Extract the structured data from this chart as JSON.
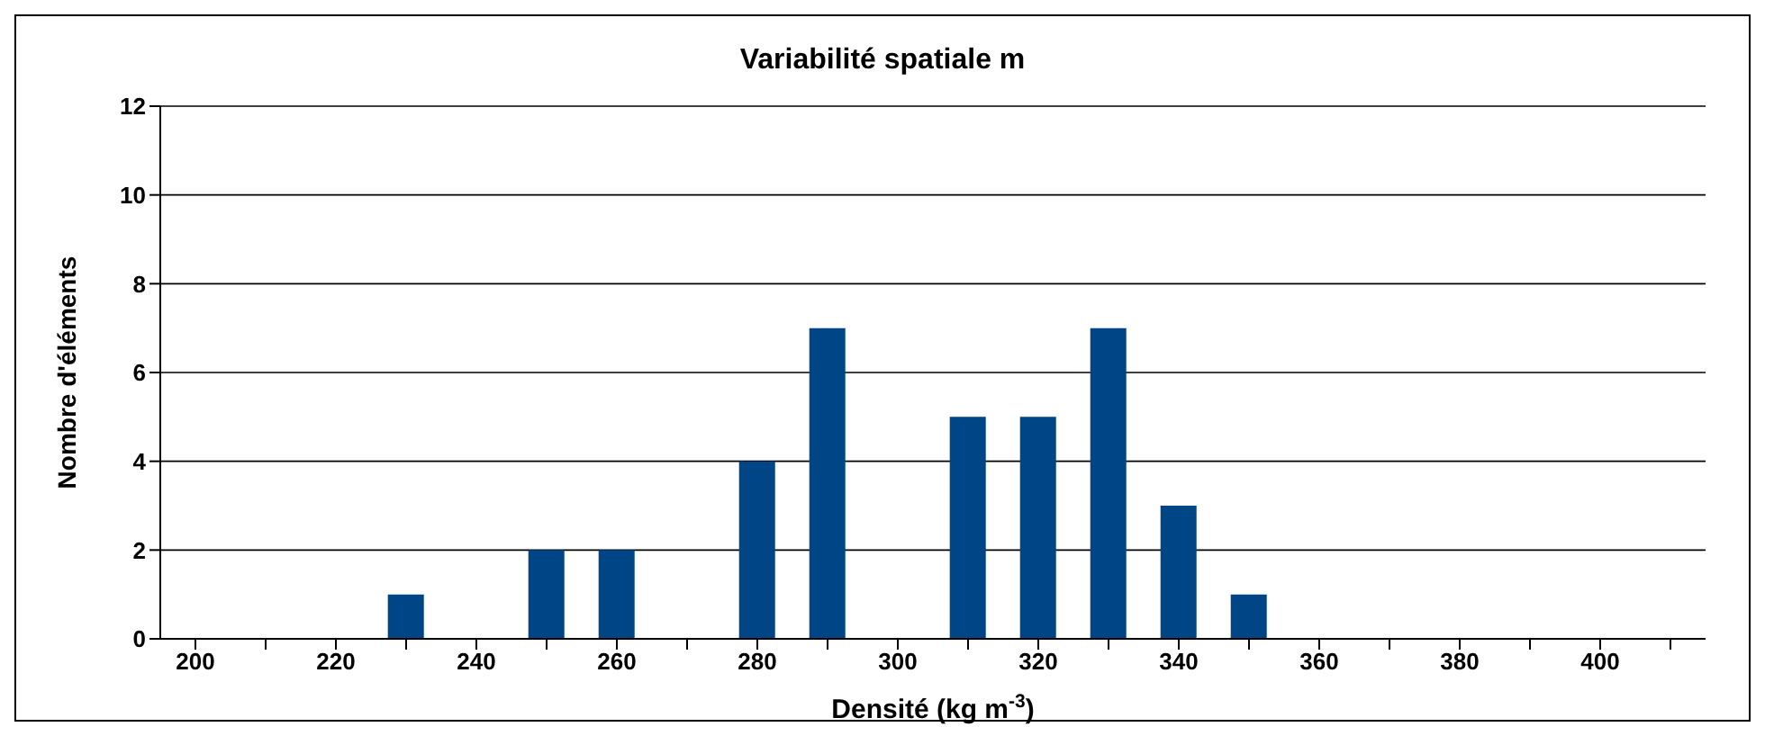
{
  "chart_data": {
    "type": "bar",
    "title": "Variabilité spatiale m",
    "xlabel": "Densité (kg m$^{-3}$)",
    "ylabel": "Nombre d'éléments",
    "categories": [
      "200",
      null,
      "220",
      null,
      "240",
      null,
      "260",
      null,
      "280",
      null,
      "300",
      null,
      "320",
      null,
      "340",
      null,
      "360",
      null,
      "380",
      null,
      "400",
      null
    ],
    "values": [
      0,
      0,
      0,
      1,
      0,
      2,
      2,
      0,
      4,
      7,
      0,
      5,
      5,
      7,
      3,
      1,
      0,
      0,
      0,
      0,
      0,
      0
    ],
    "color": "#004586",
    "ylim": [
      0,
      12
    ],
    "yticks": [
      0,
      2,
      4,
      6,
      8,
      10,
      12
    ],
    "grid": "y"
  }
}
